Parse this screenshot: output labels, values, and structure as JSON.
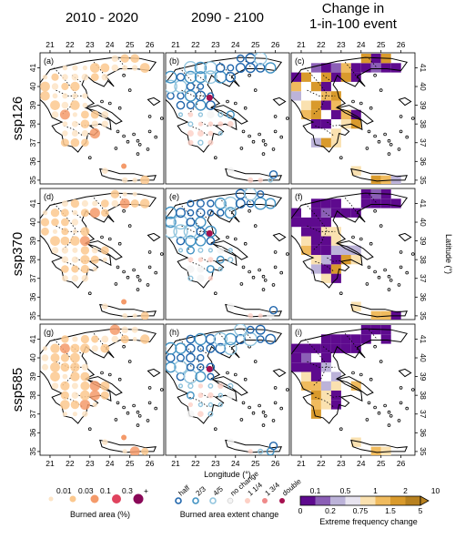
{
  "columns": [
    "2010 - 2020",
    "2090 - 2100",
    "Change in\n1-in-100 event"
  ],
  "rows": [
    "ssp126",
    "ssp370",
    "ssp585"
  ],
  "panel_labels": [
    "(a)",
    "(b)",
    "(c)",
    "(d)",
    "(e)",
    "(f)",
    "(g)",
    "(h)",
    "(i)"
  ],
  "x_axis_label": "Longitude (°)",
  "y_axis_label": "Latitude (°)",
  "lon_ticks": [
    21,
    22,
    23,
    24,
    25,
    26
  ],
  "lat_ticks": [
    35,
    36,
    37,
    38,
    39,
    40,
    41
  ],
  "legend_burned": {
    "title": "Burned area (%)",
    "items": [
      {
        "label": "0.01",
        "color": "#fde4c6"
      },
      {
        "label": "0.03",
        "color": "#fbc88e"
      },
      {
        "label": "0.1",
        "color": "#f49a6a"
      },
      {
        "label": "0.3",
        "color": "#e0435e"
      },
      {
        "label": "+",
        "color": "#8a0858"
      }
    ]
  },
  "legend_extent": {
    "title": "Burned area extent change",
    "items": [
      {
        "label": "half",
        "color": "#2166ac"
      },
      {
        "label": "2/3",
        "color": "#4393c3"
      },
      {
        "label": "4/5",
        "color": "#92c5de"
      },
      {
        "label": "no change",
        "color": "#f4f4f4"
      },
      {
        "label": "1 1/4",
        "color": "#fdd0c5"
      },
      {
        "label": "1 3/4",
        "color": "#ef8a8a"
      },
      {
        "label": "double",
        "color": "#a50f4e"
      }
    ]
  },
  "legend_freq": {
    "title": "Extreme frequency change",
    "top_labels": [
      "0.1",
      "0.5",
      "1",
      "2",
      "10"
    ],
    "bottom_labels": [
      "0",
      "0.2",
      "0.75",
      "1.5",
      "5"
    ],
    "colors": [
      "#5e0a8e",
      "#8b5fb6",
      "#bcb3d9",
      "#e8e4f0",
      "#fae1b0",
      "#f0bb5e",
      "#d99a2c",
      "#b8811f"
    ]
  },
  "chart_data": {
    "type": "map-grid",
    "lon_range": [
      20.5,
      26.7
    ],
    "lat_range": [
      34.8,
      41.8
    ],
    "columns": [
      {
        "title": "2010 - 2020",
        "variable": "Burned area (%)"
      },
      {
        "title": "2090 - 2100",
        "variable": "Burned area extent change"
      },
      {
        "title": "Change in 1-in-100 event",
        "variable": "Extreme frequency change"
      }
    ],
    "rows": [
      "ssp126",
      "ssp370",
      "ssp585"
    ]
  }
}
